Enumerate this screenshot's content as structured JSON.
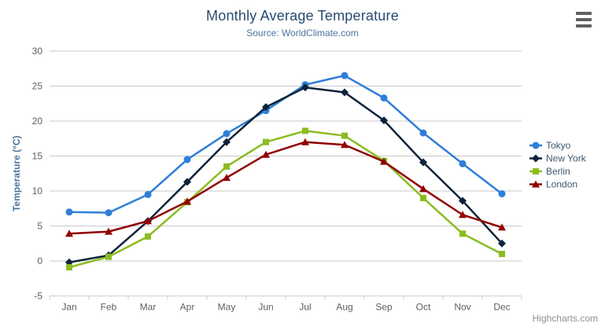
{
  "credits": "Highcharts.com",
  "menu": {
    "icon": "hamburger-icon",
    "bar_color": "#606060"
  },
  "colors": {
    "title": "#274b6d",
    "subtitle": "#4d759e",
    "axis_title": "#4d759e",
    "axis_labels": "#606060",
    "legend_text": "#3E576F",
    "grid": "#C9C9C9",
    "axis_line": "#C0D0E0",
    "credits": "#909090",
    "background": "#ffffff"
  },
  "chart_data": {
    "type": "line",
    "title": "Monthly Average Temperature",
    "subtitle": "Source: WorldClimate.com",
    "xlabel": "",
    "ylabel": "Temperature (°C)",
    "ylim": [
      -5,
      30
    ],
    "ytick_step": 5,
    "grid": true,
    "legend_position": "right",
    "categories": [
      "Jan",
      "Feb",
      "Mar",
      "Apr",
      "May",
      "Jun",
      "Jul",
      "Aug",
      "Sep",
      "Oct",
      "Nov",
      "Dec"
    ],
    "series": [
      {
        "name": "Tokyo",
        "color": "#2f7ed8",
        "marker": "circle",
        "values": [
          7.0,
          6.9,
          9.5,
          14.5,
          18.2,
          21.5,
          25.2,
          26.5,
          23.3,
          18.3,
          13.9,
          9.6
        ]
      },
      {
        "name": "New York",
        "color": "#0d233a",
        "marker": "diamond",
        "values": [
          -0.2,
          0.8,
          5.7,
          11.3,
          17.0,
          22.0,
          24.8,
          24.1,
          20.1,
          14.1,
          8.6,
          2.5
        ]
      },
      {
        "name": "Berlin",
        "color": "#8bbc21",
        "marker": "square",
        "values": [
          -0.9,
          0.6,
          3.5,
          8.4,
          13.5,
          17.0,
          18.6,
          17.9,
          14.3,
          9.0,
          3.9,
          1.0
        ]
      },
      {
        "name": "London",
        "color": "#910000",
        "marker": "triangle",
        "values": [
          3.9,
          4.2,
          5.7,
          8.5,
          11.9,
          15.2,
          17.0,
          16.6,
          14.2,
          10.3,
          6.6,
          4.8
        ]
      }
    ]
  }
}
